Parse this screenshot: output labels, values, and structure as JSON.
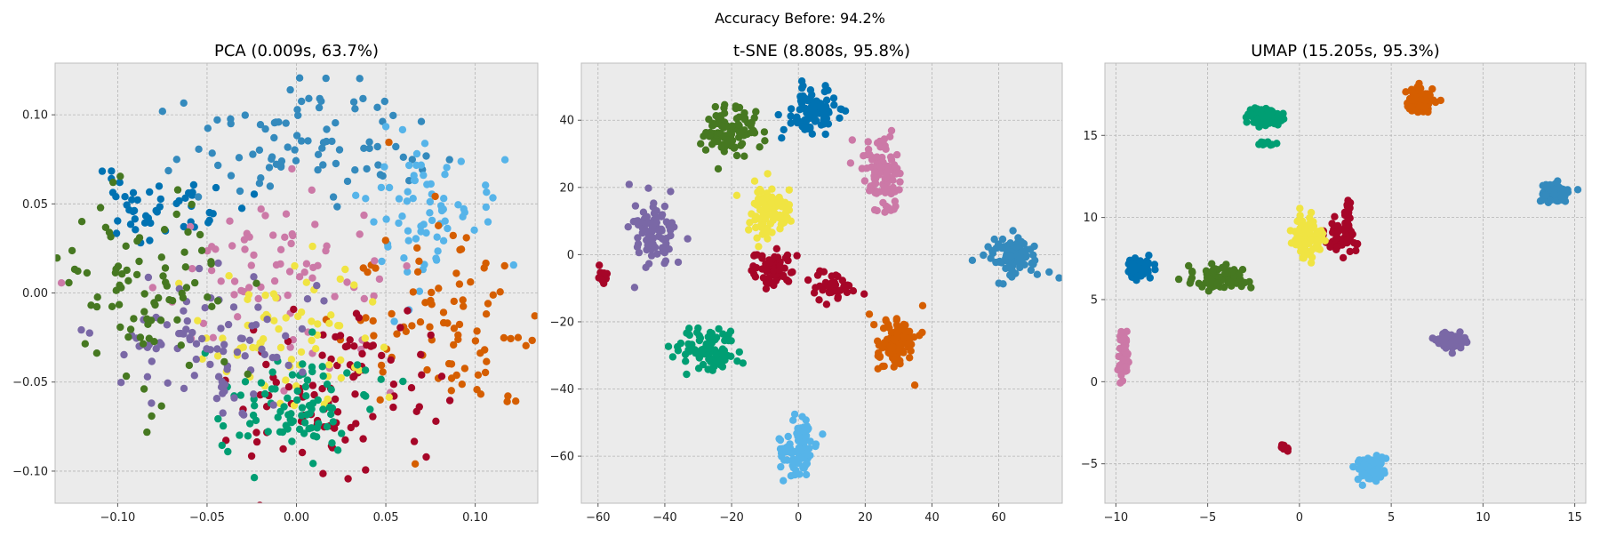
{
  "figure": {
    "suptitle": "Accuracy Before: 94.2%"
  },
  "colors": [
    "#0072B2",
    "#348ABD",
    "#56B4E9",
    "#D55E00",
    "#CC79A7",
    "#A60628",
    "#F0E442",
    "#009E73",
    "#7A68A6",
    "#467821"
  ],
  "style": {
    "background": "#EBEBEB",
    "grid": "#B5B5B5",
    "spine": "#BCBCBC"
  },
  "chart_data": [
    {
      "type": "scatter",
      "title": "PCA (0.009s, 63.7%)",
      "xlim": [
        -0.135,
        0.135
      ],
      "ylim": [
        -0.118,
        0.129
      ],
      "xticks": [
        -0.1,
        -0.05,
        0.0,
        0.05,
        0.1
      ],
      "xtick_labels": [
        "−0.10",
        "−0.05",
        "0.00",
        "0.05",
        "0.10"
      ],
      "yticks": [
        -0.1,
        -0.05,
        0.0,
        0.05,
        0.1
      ],
      "ytick_labels": [
        "−0.10",
        "−0.05",
        "0.00",
        "0.05",
        "0.10"
      ],
      "grid": true,
      "clusters": [
        {
          "color": "#0072B2",
          "cx": -0.075,
          "cy": 0.048,
          "sx": 0.022,
          "sy": 0.009,
          "n": 50,
          "seed": 11
        },
        {
          "color": "#348ABD",
          "cx": 0.005,
          "cy": 0.085,
          "sx": 0.035,
          "sy": 0.015,
          "n": 90,
          "seed": 12
        },
        {
          "color": "#56B4E9",
          "cx": 0.065,
          "cy": 0.045,
          "sx": 0.022,
          "sy": 0.022,
          "n": 75,
          "seed": 13
        },
        {
          "color": "#D55E00",
          "cx": 0.085,
          "cy": -0.015,
          "sx": 0.028,
          "sy": 0.03,
          "n": 95,
          "seed": 14
        },
        {
          "color": "#CC79A7",
          "cx": -0.01,
          "cy": 0.01,
          "sx": 0.035,
          "sy": 0.028,
          "n": 75,
          "seed": 15
        },
        {
          "color": "#A60628",
          "cx": 0.025,
          "cy": -0.055,
          "sx": 0.03,
          "sy": 0.025,
          "n": 95,
          "seed": 16
        },
        {
          "color": "#F0E442",
          "cx": -0.005,
          "cy": -0.025,
          "sx": 0.025,
          "sy": 0.025,
          "n": 70,
          "seed": 17
        },
        {
          "color": "#009E73",
          "cx": 0.0,
          "cy": -0.065,
          "sx": 0.022,
          "sy": 0.015,
          "n": 90,
          "seed": 18
        },
        {
          "color": "#7A68A6",
          "cx": -0.055,
          "cy": -0.03,
          "sx": 0.028,
          "sy": 0.018,
          "n": 90,
          "seed": 19
        },
        {
          "color": "#467821",
          "cx": -0.085,
          "cy": 0.0,
          "sx": 0.025,
          "sy": 0.028,
          "n": 90,
          "seed": 20
        }
      ]
    },
    {
      "type": "scatter",
      "title": "t-SNE (8.808s, 95.8%)",
      "xlim": [
        -65,
        79
      ],
      "ylim": [
        -74,
        57
      ],
      "xticks": [
        -60,
        -40,
        -20,
        0,
        20,
        40,
        60
      ],
      "xtick_labels": [
        "−60",
        "−40",
        "−20",
        "0",
        "20",
        "40",
        "60"
      ],
      "yticks": [
        -60,
        -40,
        -20,
        0,
        20,
        40
      ],
      "ytick_labels": [
        "−60",
        "−40",
        "−20",
        "0",
        "20",
        "40"
      ],
      "grid": true,
      "clusters": [
        {
          "color": "#0072B2",
          "cx": 4,
          "cy": 43,
          "sx": 3.5,
          "sy": 3.5,
          "n": 95,
          "seed": 31
        },
        {
          "color": "#348ABD",
          "cx": 64,
          "cy": 0,
          "sx": 3.8,
          "sy": 3,
          "n": 95,
          "seed": 32
        },
        {
          "color": "#56B4E9",
          "cx": 0,
          "cy": -58,
          "sx": 2.6,
          "sy": 4,
          "n": 95,
          "seed": 33
        },
        {
          "color": "#D55E00",
          "cx": 29,
          "cy": -26,
          "sx": 3.2,
          "sy": 4.5,
          "n": 95,
          "seed": 34
        },
        {
          "color": "#CC79A7",
          "cx": 25,
          "cy": 24,
          "sx": 3,
          "sy": 5.5,
          "n": 90,
          "seed": 35
        },
        {
          "color": "#A60628",
          "cx": -7,
          "cy": -5,
          "sx": 3.2,
          "sy": 2.8,
          "n": 60,
          "seed": 36
        },
        {
          "color": "#A60628",
          "cx": 11,
          "cy": -9,
          "sx": 3,
          "sy": 2.3,
          "n": 40,
          "seed": 37
        },
        {
          "color": "#A60628",
          "cx": -58,
          "cy": -6.5,
          "sx": 1.5,
          "sy": 1.2,
          "n": 12,
          "seed": 38
        },
        {
          "color": "#F0E442",
          "cx": -9,
          "cy": 12,
          "sx": 3.5,
          "sy": 4,
          "n": 90,
          "seed": 39
        },
        {
          "color": "#009E73",
          "cx": -28,
          "cy": -28,
          "sx": 4.5,
          "sy": 3,
          "n": 95,
          "seed": 40
        },
        {
          "color": "#7A68A6",
          "cx": -43,
          "cy": 7,
          "sx": 3,
          "sy": 5,
          "n": 90,
          "seed": 41
        },
        {
          "color": "#467821",
          "cx": -21,
          "cy": 37,
          "sx": 4.5,
          "sy": 3.5,
          "n": 95,
          "seed": 42
        }
      ]
    },
    {
      "type": "scatter",
      "title": "UMAP (15.205s, 95.3%)",
      "xlim": [
        -10.6,
        15.6
      ],
      "ylim": [
        -7.4,
        19.4
      ],
      "xticks": [
        -10,
        -5,
        0,
        5,
        10,
        15
      ],
      "xtick_labels": [
        "−10",
        "−5",
        "0",
        "5",
        "10",
        "15"
      ],
      "yticks": [
        -5,
        0,
        5,
        10,
        15
      ],
      "ytick_labels": [
        "−5",
        "0",
        "5",
        "10",
        "15"
      ],
      "grid": true,
      "clusters": [
        {
          "color": "#0072B2",
          "cx": -8.8,
          "cy": 6.9,
          "sx": 0.32,
          "sy": 0.3,
          "n": 80,
          "seed": 51
        },
        {
          "color": "#348ABD",
          "cx": 14,
          "cy": 11.5,
          "sx": 0.35,
          "sy": 0.3,
          "n": 80,
          "seed": 52
        },
        {
          "color": "#56B4E9",
          "cx": 3.8,
          "cy": -5.3,
          "sx": 0.4,
          "sy": 0.35,
          "n": 80,
          "seed": 53
        },
        {
          "color": "#D55E00",
          "cx": 6.5,
          "cy": 17.1,
          "sx": 0.45,
          "sy": 0.4,
          "n": 80,
          "seed": 54
        },
        {
          "color": "#CC79A7",
          "cx": -9.6,
          "cy": 1.6,
          "sx": 0.12,
          "sy": 0.7,
          "n": 60,
          "seed": 55
        },
        {
          "color": "#A60628",
          "cx": 2.3,
          "cy": 8.6,
          "sx": 0.45,
          "sy": 0.5,
          "n": 50,
          "seed": 56
        },
        {
          "color": "#A60628",
          "cx": 2.6,
          "cy": 10.1,
          "sx": 0.1,
          "sy": 0.6,
          "n": 20,
          "seed": 57
        },
        {
          "color": "#A60628",
          "cx": -0.8,
          "cy": -4.0,
          "sx": 0.15,
          "sy": 0.12,
          "n": 12,
          "seed": 58
        },
        {
          "color": "#F0E442",
          "cx": 0.5,
          "cy": 8.8,
          "sx": 0.45,
          "sy": 0.6,
          "n": 80,
          "seed": 59
        },
        {
          "color": "#009E73",
          "cx": -1.9,
          "cy": 16.1,
          "sx": 0.5,
          "sy": 0.3,
          "n": 80,
          "seed": 60
        },
        {
          "color": "#009E73",
          "cx": -1.8,
          "cy": 14.5,
          "sx": 0.3,
          "sy": 0.1,
          "n": 12,
          "seed": 61
        },
        {
          "color": "#7A68A6",
          "cx": 8.2,
          "cy": 2.5,
          "sx": 0.45,
          "sy": 0.25,
          "n": 80,
          "seed": 62
        },
        {
          "color": "#467821",
          "cx": -4.2,
          "cy": 6.3,
          "sx": 0.75,
          "sy": 0.35,
          "n": 80,
          "seed": 63
        }
      ]
    }
  ]
}
